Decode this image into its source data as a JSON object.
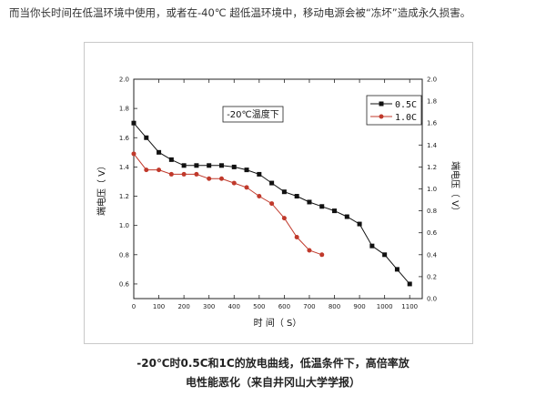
{
  "intro_text": "而当你长时间在低温环境中使用，或者在-40℃ 超低温环境中，移动电源会被“冻坏”造成永久损害。",
  "caption_line1": "-20℃时0.5C和1C的放电曲线，低温条件下，高倍率放",
  "caption_line2": "电性能恶化（来自井冈山大学学报）",
  "colors": {
    "series1": "#111111",
    "series2": "#c0392b",
    "axis": "#222222"
  },
  "chart_data": {
    "type": "line",
    "annotation": "-20℃温度下",
    "xlabel": "时 间（ S）",
    "ylabel_left": "端电压（ V）",
    "ylabel_right": "端电压（ V）",
    "xlim": [
      0,
      1150
    ],
    "ylim_left": [
      0.5,
      2.0
    ],
    "ylim_right": [
      0.0,
      2.0
    ],
    "x_ticks": [
      "0",
      "100",
      "200",
      "300",
      "400",
      "500",
      "600",
      "700",
      "800",
      "900",
      "1000",
      "1100"
    ],
    "y_ticks_left": [
      "0.6",
      "0.8",
      "1.0",
      "1.2",
      "1.4",
      "1.6",
      "1.8",
      "2.0"
    ],
    "y_ticks_right": [
      "0.0",
      "0.2",
      "0.4",
      "0.6",
      "0.8",
      "1.0",
      "1.2",
      "1.4",
      "1.6",
      "1.8",
      "2.0"
    ],
    "legend_position": "top-right",
    "series": [
      {
        "name": "0.5C",
        "marker": "square",
        "x": [
          0,
          50,
          100,
          150,
          200,
          250,
          300,
          350,
          400,
          450,
          500,
          550,
          600,
          650,
          700,
          750,
          800,
          850,
          900,
          950,
          1000,
          1050,
          1100
        ],
        "y": [
          1.7,
          1.6,
          1.5,
          1.45,
          1.41,
          1.41,
          1.41,
          1.41,
          1.4,
          1.38,
          1.35,
          1.29,
          1.23,
          1.2,
          1.16,
          1.13,
          1.1,
          1.06,
          1.01,
          0.86,
          0.8,
          0.7,
          0.6
        ]
      },
      {
        "name": "1.0C",
        "marker": "circle",
        "x": [
          0,
          50,
          100,
          150,
          200,
          250,
          300,
          350,
          400,
          450,
          500,
          550,
          600,
          650,
          700,
          750
        ],
        "y": [
          1.49,
          1.38,
          1.38,
          1.35,
          1.35,
          1.35,
          1.32,
          1.32,
          1.29,
          1.26,
          1.2,
          1.15,
          1.05,
          0.92,
          0.83,
          0.8
        ]
      }
    ]
  }
}
